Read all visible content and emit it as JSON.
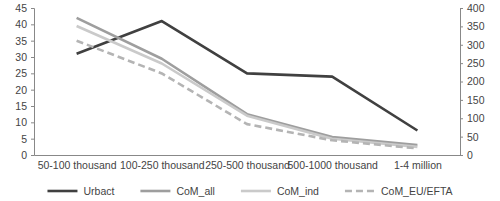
{
  "chart_data": {
    "type": "line",
    "categories": [
      "50-100 thousand",
      "100-250 thousand",
      "250-500 thousand",
      "500-1000 thousand",
      "1-4 million"
    ],
    "series": [
      {
        "name": "Urbact",
        "color": "#404040",
        "line_style": "solid",
        "values": [
          31,
          41,
          25,
          24,
          7.5
        ]
      },
      {
        "name": "CoM_all",
        "color": "#9e9e9e",
        "line_style": "solid",
        "axis": "y2",
        "values": [
          373,
          262,
          111,
          49,
          27
        ]
      },
      {
        "name": "CoM_ind",
        "color": "#cacaca",
        "line_style": "solid",
        "axis": "y2",
        "values": [
          351,
          249,
          107,
          44,
          22
        ]
      },
      {
        "name": "CoM_EU/EFTA",
        "color": "#b4b4b4",
        "line_style": "dashed",
        "axis": "y2",
        "values": [
          311,
          222,
          84,
          40,
          18
        ]
      }
    ],
    "ylim": [
      0,
      45
    ],
    "yticks": [
      0,
      5,
      10,
      15,
      20,
      25,
      30,
      35,
      40,
      45
    ],
    "y2lim": [
      0,
      400
    ],
    "y2ticks": [
      0,
      50,
      100,
      150,
      200,
      250,
      300,
      350,
      400
    ],
    "grid": false,
    "legend": "bottom"
  }
}
